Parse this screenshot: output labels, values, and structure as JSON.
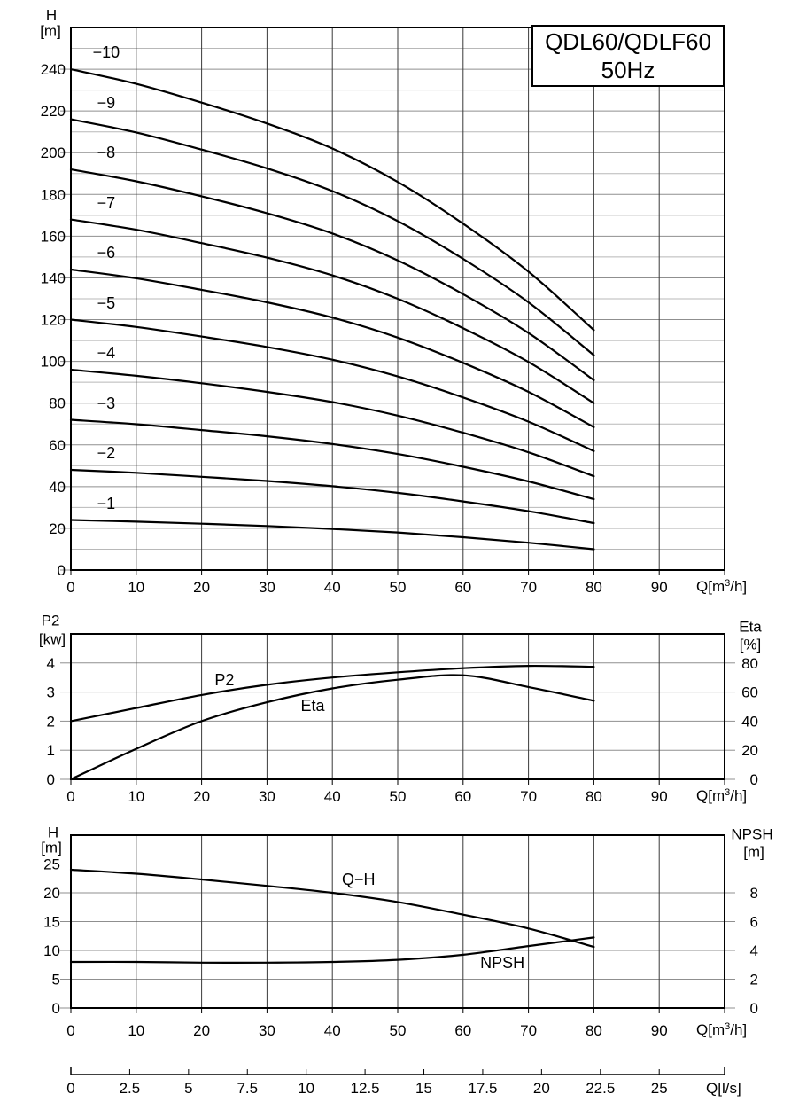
{
  "title_box": {
    "line1": "QDL60/QDLF60",
    "line2": "50Hz"
  },
  "labels": {
    "q_m3h": {
      "prefix": "Q[m",
      "sup": "3",
      "suffix": "/h]"
    },
    "q_ls": "Q[l/s]",
    "chart1_y": {
      "name": "H",
      "unit": "[m]"
    },
    "chart2_left": {
      "name": "P2",
      "unit": "[kw]"
    },
    "chart2_right": {
      "name": "Eta",
      "unit": "[%]"
    },
    "chart3_left": {
      "name": "H",
      "unit": "[m]"
    },
    "chart3_right": {
      "name": "NPSH",
      "unit": "[m]"
    }
  },
  "colors": {
    "background": "#ffffff",
    "text": "#000000",
    "curve": "#000000",
    "border": "#000000",
    "grid_vertical": "#3a3a3a",
    "grid_major": "#8f8f8f",
    "grid_minor": "#b8b8b8"
  },
  "chart_data": [
    {
      "type": "line",
      "name": "head-curves",
      "title": "QDL60/QDLF60 50Hz",
      "xlabel": "Q[m3/h]",
      "ylabel": "H [m]",
      "xlim": [
        0,
        100
      ],
      "x_grid_step": 10,
      "x_tick_labels": [
        0,
        10,
        20,
        30,
        40,
        50,
        60,
        70,
        80,
        90
      ],
      "left_axis": {
        "lim": [
          0,
          260
        ],
        "grid_step": 10,
        "major_step": 20,
        "ticks": [
          0,
          20,
          40,
          60,
          80,
          100,
          120,
          140,
          160,
          180,
          200,
          220,
          240
        ]
      },
      "x": [
        0,
        10,
        20,
        30,
        40,
        50,
        60,
        70,
        80
      ],
      "series": [
        {
          "name": "−1",
          "values": [
            24,
            23.2,
            22.2,
            21.1,
            19.7,
            18.0,
            15.7,
            13.1,
            10
          ]
        },
        {
          "name": "−2",
          "values": [
            48,
            46.6,
            44.7,
            42.7,
            40.2,
            37.0,
            32.9,
            28.2,
            22.5
          ]
        },
        {
          "name": "−3",
          "values": [
            72,
            69.9,
            67.1,
            64.1,
            60.4,
            55.6,
            49.5,
            42.5,
            34
          ]
        },
        {
          "name": "−4",
          "values": [
            96,
            93.1,
            89.5,
            85.4,
            80.5,
            74.0,
            65.8,
            56.4,
            45
          ]
        },
        {
          "name": "−5",
          "values": [
            120,
            116.5,
            111.9,
            106.9,
            100.8,
            92.8,
            82.7,
            71.1,
            57
          ]
        },
        {
          "name": "−6",
          "values": [
            144,
            139.8,
            134.3,
            128.3,
            121.0,
            111.4,
            99.3,
            85.4,
            68.5
          ]
        },
        {
          "name": "−7",
          "values": [
            168,
            163.1,
            156.7,
            149.7,
            141.2,
            130.0,
            115.9,
            99.7,
            80
          ]
        },
        {
          "name": "−8",
          "values": [
            192,
            186.3,
            179.1,
            171.0,
            161.3,
            148.4,
            132.2,
            113.6,
            91
          ]
        },
        {
          "name": "−9",
          "values": [
            216,
            209.7,
            201.5,
            192.5,
            181.6,
            167.2,
            149.1,
            128.3,
            103
          ]
        },
        {
          "name": "−10",
          "values": [
            240,
            233,
            224,
            214,
            202,
            186,
            166,
            143,
            115
          ]
        }
      ],
      "series_label": {
        "q": 5.4,
        "dh": 8
      }
    },
    {
      "type": "line",
      "name": "power-efficiency",
      "xlabel": "Q[m3/h]",
      "xlim": [
        0,
        100
      ],
      "x_grid_step": 10,
      "x_tick_labels": [
        0,
        10,
        20,
        30,
        40,
        50,
        60,
        70,
        80,
        90
      ],
      "left_axis": {
        "label": "P2 [kw]",
        "lim": [
          0,
          5
        ],
        "ticks": [
          0,
          1,
          2,
          3,
          4
        ],
        "grid": [
          1,
          2,
          3,
          4
        ]
      },
      "right_axis": {
        "label": "Eta [%]",
        "lim": [
          0,
          100
        ],
        "ticks": [
          0,
          20,
          40,
          60,
          80
        ]
      },
      "x": [
        0,
        10,
        20,
        30,
        40,
        50,
        60,
        70,
        80
      ],
      "series": [
        {
          "name": "P2",
          "axis": "left",
          "values": [
            2.0,
            2.45,
            2.9,
            3.25,
            3.5,
            3.68,
            3.82,
            3.9,
            3.87
          ],
          "label_at": {
            "q": 23.5,
            "v": 3.4
          }
        },
        {
          "name": "Eta",
          "axis": "right",
          "values": [
            0,
            21,
            40,
            53,
            62.5,
            68.5,
            71.5,
            63.5,
            54
          ],
          "label_at": {
            "q": 37,
            "v": 50.5
          }
        }
      ]
    },
    {
      "type": "line",
      "name": "qh-npsh",
      "xlabel": "Q[m3/h]",
      "xlim": [
        0,
        100
      ],
      "x_grid_step": 10,
      "x_tick_labels": [
        0,
        10,
        20,
        30,
        40,
        50,
        60,
        70,
        80,
        90
      ],
      "left_axis": {
        "label": "H [m]",
        "lim": [
          0,
          30
        ],
        "ticks": [
          0,
          5,
          10,
          15,
          20,
          25
        ],
        "grid": [
          5,
          10,
          15,
          20,
          25
        ]
      },
      "right_axis": {
        "label": "NPSH [m]",
        "lim": [
          0,
          12
        ],
        "ticks": [
          0,
          2,
          4,
          6,
          8
        ]
      },
      "x": [
        0,
        10,
        20,
        30,
        40,
        50,
        60,
        70,
        80
      ],
      "series": [
        {
          "name": "Q−H",
          "axis": "left",
          "values": [
            24,
            23.3,
            22.3,
            21.2,
            20.0,
            18.4,
            16.2,
            13.8,
            10.6
          ],
          "label_at": {
            "q": 44,
            "v": 22.3
          }
        },
        {
          "name": "NPSH",
          "axis": "right",
          "values": [
            3.2,
            3.2,
            3.15,
            3.15,
            3.2,
            3.35,
            3.7,
            4.3,
            4.9
          ],
          "label_at": {
            "q": 66,
            "v": 3.13
          }
        }
      ]
    },
    {
      "type": "axis",
      "name": "flow-ls-axis",
      "label": "Q[l/s]",
      "ticks": [
        0,
        2.5,
        5,
        7.5,
        10,
        12.5,
        15,
        17.5,
        20,
        22.5,
        25
      ],
      "m3h_per_ls": 3.6
    }
  ]
}
